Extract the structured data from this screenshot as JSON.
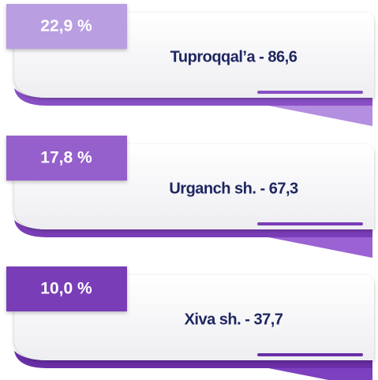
{
  "items": [
    {
      "percent": "22,9 %",
      "label": "Tuproqqal’a - 86,6"
    },
    {
      "percent": "17,8 %",
      "label": "Urganch sh. - 67,3"
    },
    {
      "percent": "10,0 %",
      "label": "Xiva sh. - 37,7"
    }
  ]
}
